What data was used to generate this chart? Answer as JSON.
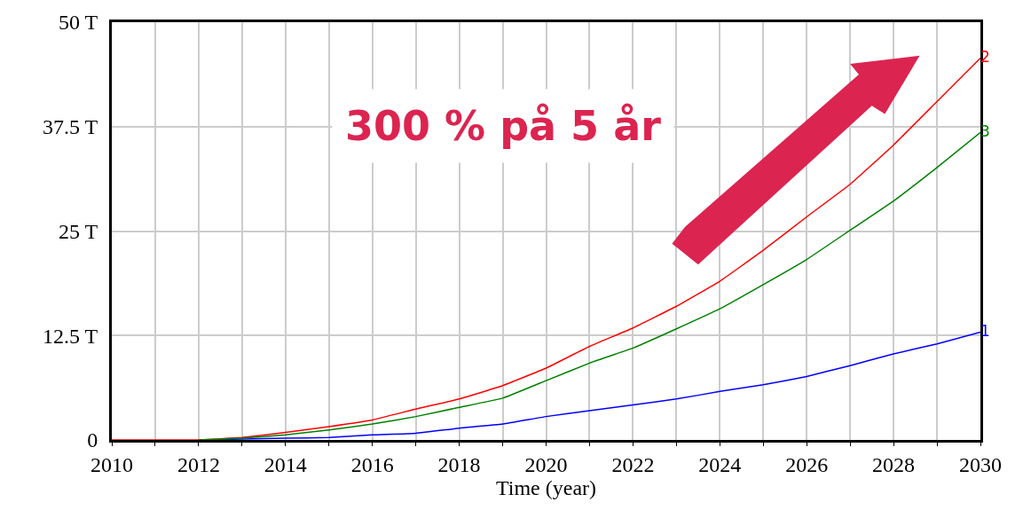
{
  "chart_data": {
    "type": "line",
    "xlabel": "Time (year)",
    "x": [
      2010,
      2011,
      2012,
      2013,
      2014,
      2015,
      2016,
      2017,
      2018,
      2019,
      2020,
      2021,
      2022,
      2023,
      2024,
      2025,
      2026,
      2027,
      2028,
      2029,
      2030
    ],
    "series": [
      {
        "name": "1",
        "color": "#0000ff",
        "values": [
          null,
          null,
          0,
          0.1,
          0.2,
          0.3,
          0.6,
          0.8,
          1.4,
          1.9,
          2.8,
          3.5,
          4.2,
          4.9,
          5.8,
          6.6,
          7.6,
          8.9,
          10.3,
          11.5,
          12.9
        ]
      },
      {
        "name": "2",
        "color": "#ff0000",
        "values": [
          0,
          0,
          0,
          0.3,
          0.9,
          1.6,
          2.4,
          3.7,
          4.9,
          6.5,
          8.6,
          11.2,
          13.4,
          16.0,
          19.0,
          22.7,
          26.7,
          30.6,
          35.3,
          40.5,
          45.7
        ]
      },
      {
        "name": "3",
        "color": "#008000",
        "values": [
          null,
          null,
          0,
          0.2,
          0.6,
          1.2,
          1.9,
          2.8,
          3.9,
          5.0,
          7.1,
          9.2,
          11.0,
          13.3,
          15.7,
          18.6,
          21.6,
          25.1,
          28.6,
          32.6,
          36.8
        ]
      }
    ],
    "xlim": [
      2010,
      2030
    ],
    "xticks": [
      2010,
      {
        "value": 2011,
        "label": null
      },
      2012,
      {
        "value": 2013,
        "label": null
      },
      2014,
      {
        "value": 2015,
        "label": null
      },
      2016,
      {
        "value": 2017,
        "label": null
      },
      2018,
      {
        "value": 2019,
        "label": null
      },
      2020,
      {
        "value": 2021,
        "label": null
      },
      2022,
      {
        "value": 2023,
        "label": null
      },
      2024,
      {
        "value": 2025,
        "label": null
      },
      2026,
      {
        "value": 2027,
        "label": null
      },
      2028,
      {
        "value": 2029,
        "label": null
      },
      2030
    ],
    "ylim": [
      0,
      50
    ],
    "yticks": [
      0,
      {
        "value": 12.5,
        "label": "12.5 T"
      },
      {
        "value": 25,
        "label": "25 T"
      },
      {
        "value": 37.5,
        "label": "37.5 T"
      },
      {
        "value": 50,
        "label": "50 T"
      }
    ],
    "grid": true,
    "legend": false,
    "annotations": [
      "300 % på 5 år"
    ]
  }
}
